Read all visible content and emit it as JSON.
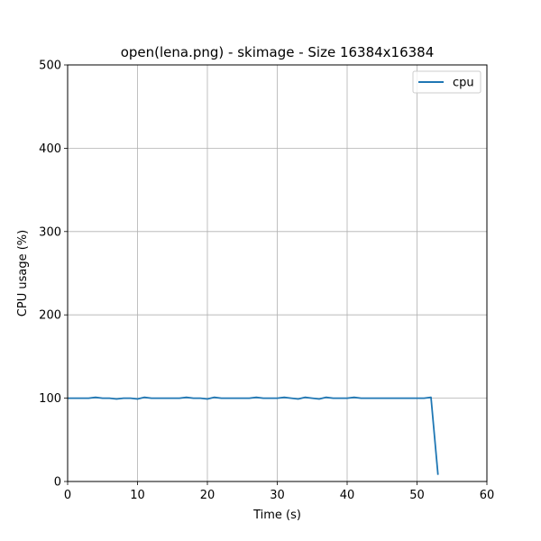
{
  "chart_data": {
    "type": "line",
    "title": "open(lena.png) - skimage - Size 16384x16384",
    "xlabel": "Time (s)",
    "ylabel": "CPU usage (%)",
    "xlim": [
      0,
      60
    ],
    "ylim": [
      0,
      500
    ],
    "xticks": [
      0,
      10,
      20,
      30,
      40,
      50,
      60
    ],
    "yticks": [
      0,
      100,
      200,
      300,
      400,
      500
    ],
    "grid": true,
    "legend_position": "top-right",
    "series": [
      {
        "name": "cpu",
        "color": "#1f77b4",
        "x": [
          0,
          1,
          2,
          3,
          4,
          5,
          6,
          7,
          8,
          9,
          10,
          11,
          12,
          13,
          14,
          15,
          16,
          17,
          18,
          19,
          20,
          21,
          22,
          23,
          24,
          25,
          26,
          27,
          28,
          29,
          30,
          31,
          32,
          33,
          34,
          35,
          36,
          37,
          38,
          39,
          40,
          41,
          42,
          43,
          44,
          45,
          46,
          47,
          48,
          49,
          50,
          51,
          52,
          53
        ],
        "y": [
          100,
          100,
          100,
          100,
          101,
          100,
          100,
          99,
          100,
          100,
          99,
          101,
          100,
          100,
          100,
          100,
          100,
          101,
          100,
          100,
          99,
          101,
          100,
          100,
          100,
          100,
          100,
          101,
          100,
          100,
          100,
          101,
          100,
          99,
          101,
          100,
          99,
          101,
          100,
          100,
          100,
          101,
          100,
          100,
          100,
          100,
          100,
          100,
          100,
          100,
          100,
          100,
          101,
          8
        ]
      }
    ]
  }
}
